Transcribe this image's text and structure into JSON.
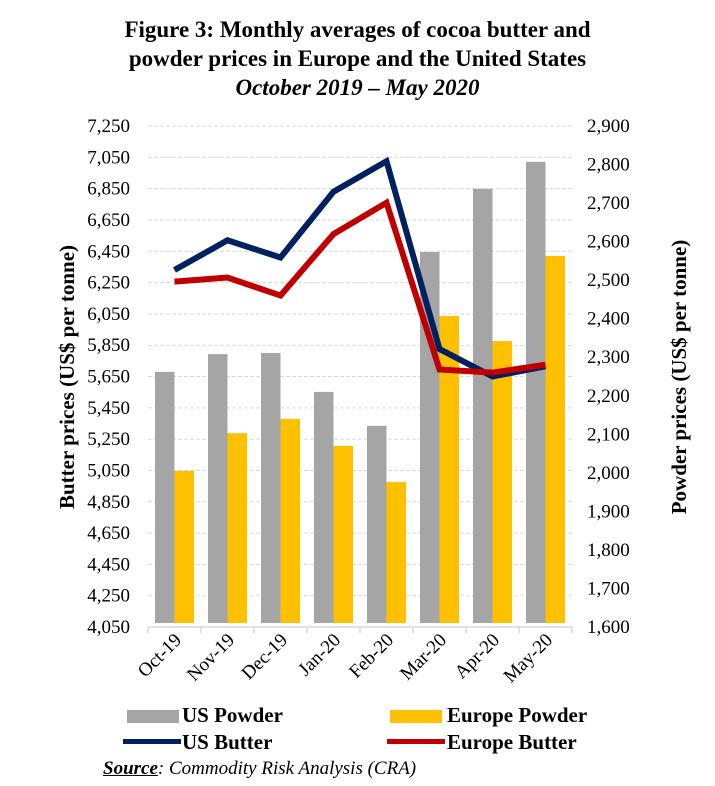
{
  "chart_data": {
    "type": "bar",
    "title": "Figure 3: Monthly averages of cocoa butter and powder prices in Europe and the United States",
    "title_line1": "Figure 3: Monthly averages of cocoa butter and",
    "title_line2": "powder prices in Europe and the United States",
    "subtitle": "October 2019 – May 2020",
    "categories": [
      "Oct-19",
      "Nov-19",
      "Dec-19",
      "Jan-20",
      "Feb-20",
      "Mar-20",
      "Apr-20",
      "May-20"
    ],
    "ylabel_left": "Butter prices (US$ per tonne)",
    "ylabel_right": "Powder prices (US$ per tonne)",
    "ylim_left": [
      4050,
      7250
    ],
    "yticks_left": [
      "4,050",
      "4,250",
      "4,450",
      "4,650",
      "4,850",
      "5,050",
      "5,250",
      "5,450",
      "5,650",
      "5,850",
      "6,050",
      "6,250",
      "6,450",
      "6,650",
      "6,850",
      "7,050",
      "7,250"
    ],
    "ylim_right": [
      1600,
      2900
    ],
    "yticks_right": [
      "1,600",
      "1,700",
      "1,800",
      "1,900",
      "2,000",
      "2,100",
      "2,200",
      "2,300",
      "2,400",
      "2,500",
      "2,600",
      "2,700",
      "2,800",
      "2,900"
    ],
    "grid": true,
    "series": [
      {
        "name": "US Powder",
        "kind": "bar",
        "axis": "right",
        "color": "#A5A5A5",
        "values": [
          2262,
          2308,
          2311,
          2210,
          2122,
          2573,
          2737,
          2807
        ]
      },
      {
        "name": "Europe Powder",
        "kind": "bar",
        "axis": "right",
        "color": "#FFC000",
        "values": [
          2005,
          2103,
          2140,
          2070,
          1976,
          2407,
          2342,
          2563
        ]
      },
      {
        "name": "US Butter",
        "kind": "line",
        "axis": "left",
        "color": "#002060",
        "values": [
          6330,
          6520,
          6410,
          6830,
          7025,
          5825,
          5650,
          5715
        ]
      },
      {
        "name": "Europe Butter",
        "kind": "line",
        "axis": "left",
        "color": "#C00000",
        "values": [
          6256,
          6282,
          6167,
          6560,
          6760,
          5695,
          5675,
          5725
        ]
      }
    ],
    "legend": {
      "placement": "bottom",
      "items": [
        {
          "label": "US Powder",
          "color": "#A5A5A5",
          "kind": "bar"
        },
        {
          "label": "Europe Powder",
          "color": "#FFC000",
          "kind": "bar"
        },
        {
          "label": "US Butter",
          "color": "#002060",
          "kind": "line"
        },
        {
          "label": "Europe Butter",
          "color": "#C00000",
          "kind": "line"
        }
      ]
    }
  },
  "source": {
    "key": "Source",
    "text": ": Commodity Risk Analysis (CRA)"
  }
}
